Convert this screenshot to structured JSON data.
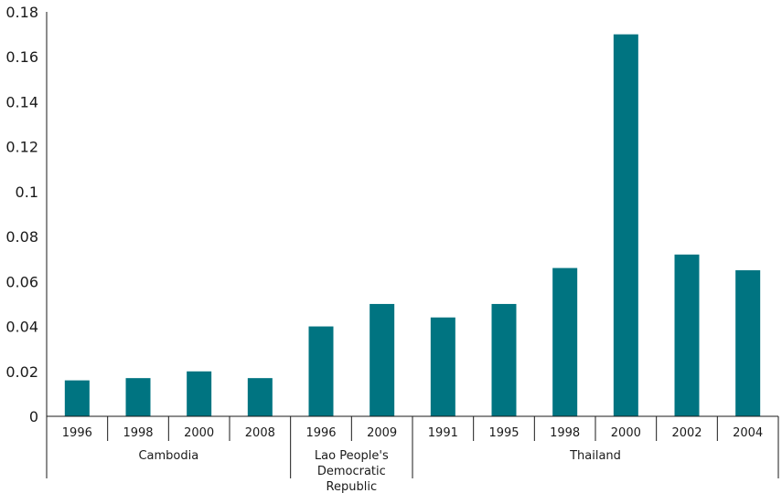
{
  "chart_data": {
    "type": "bar",
    "title": "",
    "xlabel": "",
    "ylabel": "",
    "ylim": [
      0,
      0.18
    ],
    "yticks": [
      "0",
      "0.02",
      "0.04",
      "0.06",
      "0.08",
      "0.1",
      "0.12",
      "0.14",
      "0.16",
      "0.18"
    ],
    "grid": false,
    "legend": "none",
    "bar_color": "#007481",
    "groups": [
      {
        "label_lines": [
          "Cambodia"
        ],
        "categories": [
          "1996",
          "1998",
          "2000",
          "2008"
        ],
        "values": [
          0.016,
          0.017,
          0.02,
          0.017
        ]
      },
      {
        "label_lines": [
          "Lao People's",
          "Democratic",
          "Republic"
        ],
        "categories": [
          "1996",
          "2009"
        ],
        "values": [
          0.04,
          0.05
        ]
      },
      {
        "label_lines": [
          "Thailand"
        ],
        "categories": [
          "1991",
          "1995",
          "1998",
          "2000",
          "2002",
          "2004"
        ],
        "values": [
          0.044,
          0.05,
          0.066,
          0.17,
          0.072,
          0.065
        ]
      }
    ]
  }
}
